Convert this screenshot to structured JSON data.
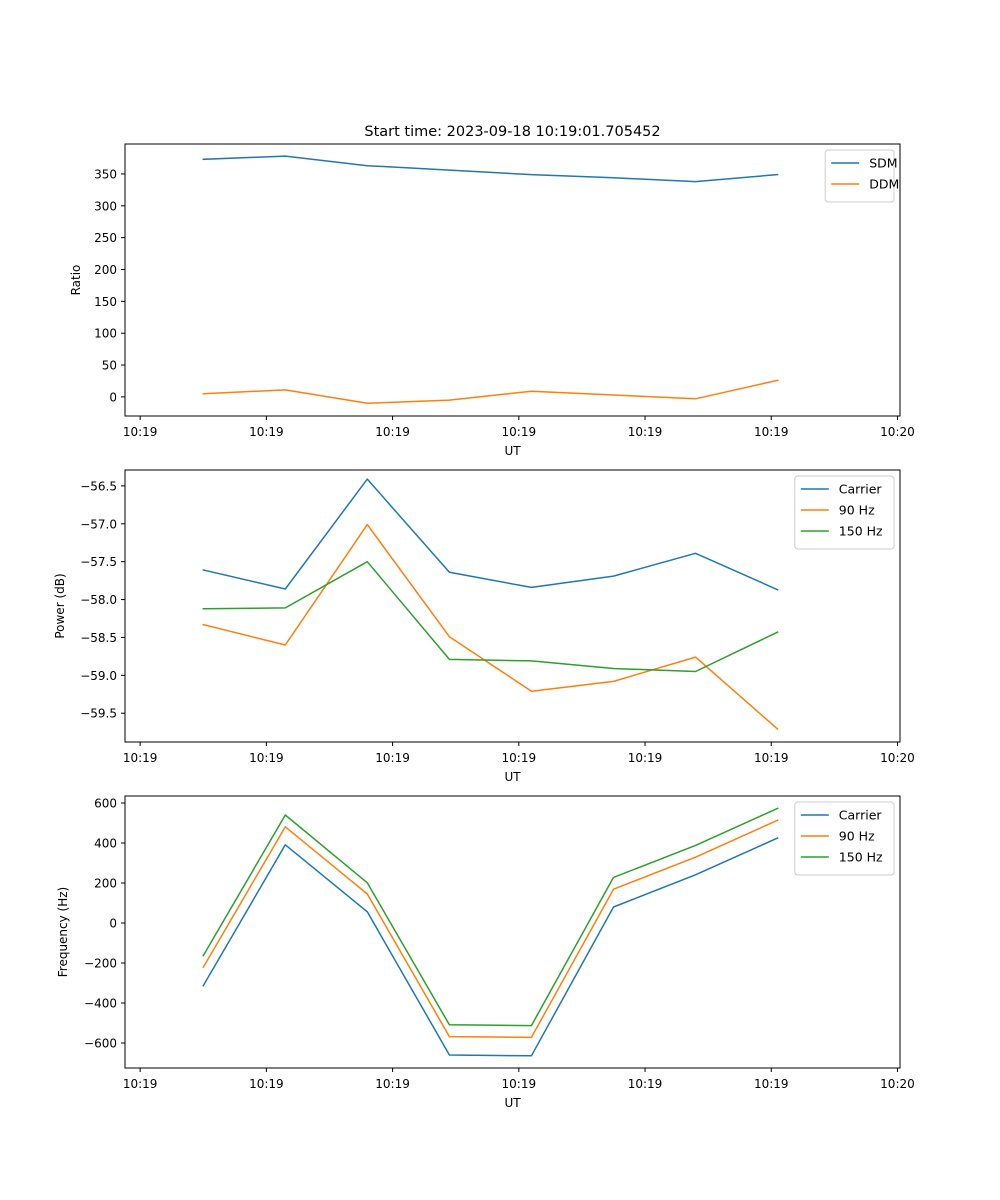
{
  "figure_title": "Start time: 2023-09-18 10:19:01.705452",
  "chart_data": [
    {
      "type": "line",
      "title": "Start time: 2023-09-18 10:19:01.705452",
      "xlabel": "UT",
      "ylabel": "Ratio",
      "x_tick_labels": [
        "10:19",
        "10:19",
        "10:19",
        "10:19",
        "10:19",
        "10:19",
        "10:20"
      ],
      "x_tick_values": [
        0,
        10,
        20,
        30,
        40,
        50,
        60
      ],
      "xlim": [
        -1.2,
        60.2
      ],
      "x": [
        5,
        11.5,
        18,
        24.5,
        31,
        37.5,
        44,
        50.5
      ],
      "ylim": [
        -30,
        397
      ],
      "yticks": [
        0,
        50,
        100,
        150,
        200,
        250,
        300,
        350
      ],
      "legend_position": "upper right",
      "series": [
        {
          "name": "SDM",
          "color": "#1f77b4",
          "values": [
            373,
            378,
            363,
            356,
            349,
            344,
            338,
            349
          ]
        },
        {
          "name": "DDM",
          "color": "#ff7f0e",
          "values": [
            5,
            11,
            -10,
            -5,
            9,
            3,
            -3,
            26
          ]
        }
      ]
    },
    {
      "type": "line",
      "title": "",
      "xlabel": "UT",
      "ylabel": "Power (dB)",
      "x_tick_labels": [
        "10:19",
        "10:19",
        "10:19",
        "10:19",
        "10:19",
        "10:19",
        "10:20"
      ],
      "x_tick_values": [
        0,
        10,
        20,
        30,
        40,
        50,
        60
      ],
      "xlim": [
        -1.2,
        60.2
      ],
      "x": [
        5,
        11.5,
        18,
        24.5,
        31,
        37.5,
        44,
        50.5
      ],
      "ylim": [
        -59.88,
        -56.29
      ],
      "yticks": [
        -59.5,
        -59.0,
        -58.5,
        -58.0,
        -57.5,
        -57.0,
        -56.5
      ],
      "ytick_labels": [
        "−59.5",
        "−59.0",
        "−58.5",
        "−58.0",
        "−57.5",
        "−57.0",
        "−56.5"
      ],
      "legend_position": "upper right",
      "series": [
        {
          "name": "Carrier",
          "color": "#1f77b4",
          "values": [
            -57.61,
            -57.86,
            -56.41,
            -57.64,
            -57.84,
            -57.69,
            -57.39,
            -57.87
          ]
        },
        {
          "name": "90 Hz",
          "color": "#ff7f0e",
          "values": [
            -58.33,
            -58.6,
            -57.01,
            -58.49,
            -59.21,
            -59.08,
            -58.76,
            -59.71
          ]
        },
        {
          "name": "150 Hz",
          "color": "#2ca02c",
          "values": [
            -58.12,
            -58.11,
            -57.5,
            -58.79,
            -58.81,
            -58.91,
            -58.95,
            -58.43
          ]
        }
      ]
    },
    {
      "type": "line",
      "title": "",
      "xlabel": "UT",
      "ylabel": "Frequency (Hz)",
      "x_tick_labels": [
        "10:19",
        "10:19",
        "10:19",
        "10:19",
        "10:19",
        "10:19",
        "10:20"
      ],
      "x_tick_values": [
        0,
        10,
        20,
        30,
        40,
        50,
        60
      ],
      "xlim": [
        -1.2,
        60.2
      ],
      "x": [
        5,
        11.5,
        18,
        24.5,
        31,
        37.5,
        44,
        50.5
      ],
      "ylim": [
        -725,
        635
      ],
      "yticks": [
        -600,
        -400,
        -200,
        0,
        200,
        400,
        600
      ],
      "ytick_labels": [
        "−600",
        "−400",
        "−200",
        "0",
        "200",
        "400",
        "600"
      ],
      "legend_position": "upper right",
      "series": [
        {
          "name": "Carrier",
          "color": "#1f77b4",
          "values": [
            -313,
            391,
            56,
            -660,
            -664,
            80,
            241,
            425
          ]
        },
        {
          "name": "90 Hz",
          "color": "#ff7f0e",
          "values": [
            -221,
            481,
            145,
            -568,
            -572,
            169,
            329,
            514
          ]
        },
        {
          "name": "150 Hz",
          "color": "#2ca02c",
          "values": [
            -163,
            540,
            201,
            -509,
            -513,
            228,
            388,
            573
          ]
        }
      ]
    }
  ]
}
